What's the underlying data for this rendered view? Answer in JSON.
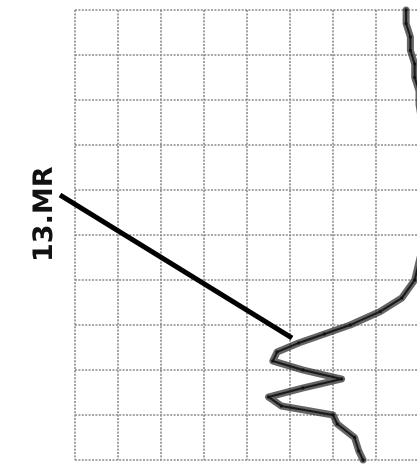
{
  "chart_data": {
    "type": "line",
    "title": "",
    "xlabel": "",
    "ylabel": "",
    "grid": true,
    "orientation": "rotated-90",
    "annotations": [
      {
        "text": "13.MR"
      }
    ],
    "series": [
      {
        "values": [
          [
            0.0,
            7.7
          ],
          [
            0.03,
            7.7
          ],
          [
            0.06,
            7.8
          ],
          [
            0.09,
            7.8
          ],
          [
            0.12,
            7.9
          ],
          [
            0.15,
            7.9
          ],
          [
            0.18,
            8.0
          ],
          [
            0.21,
            8.0
          ],
          [
            0.24,
            8.05
          ],
          [
            0.27,
            8.1
          ],
          [
            0.3,
            8.1
          ],
          [
            0.33,
            8.1
          ],
          [
            0.36,
            8.15
          ],
          [
            0.4,
            8.2
          ],
          [
            0.44,
            8.2
          ],
          [
            0.48,
            8.2
          ],
          [
            0.52,
            8.1
          ],
          [
            0.56,
            8.0
          ],
          [
            0.6,
            7.9
          ],
          [
            0.64,
            7.6
          ],
          [
            0.67,
            7.1
          ],
          [
            0.7,
            6.4
          ],
          [
            0.72,
            5.8
          ],
          [
            0.74,
            5.2
          ],
          [
            0.76,
            4.7
          ],
          [
            0.78,
            4.6
          ],
          [
            0.8,
            5.3
          ],
          [
            0.82,
            6.2
          ],
          [
            0.84,
            5.3
          ],
          [
            0.86,
            4.5
          ],
          [
            0.88,
            4.8
          ],
          [
            0.9,
            6.0
          ],
          [
            0.92,
            6.1
          ],
          [
            0.95,
            6.5
          ],
          [
            0.98,
            6.6
          ],
          [
            1.0,
            6.7
          ]
        ]
      }
    ]
  }
}
